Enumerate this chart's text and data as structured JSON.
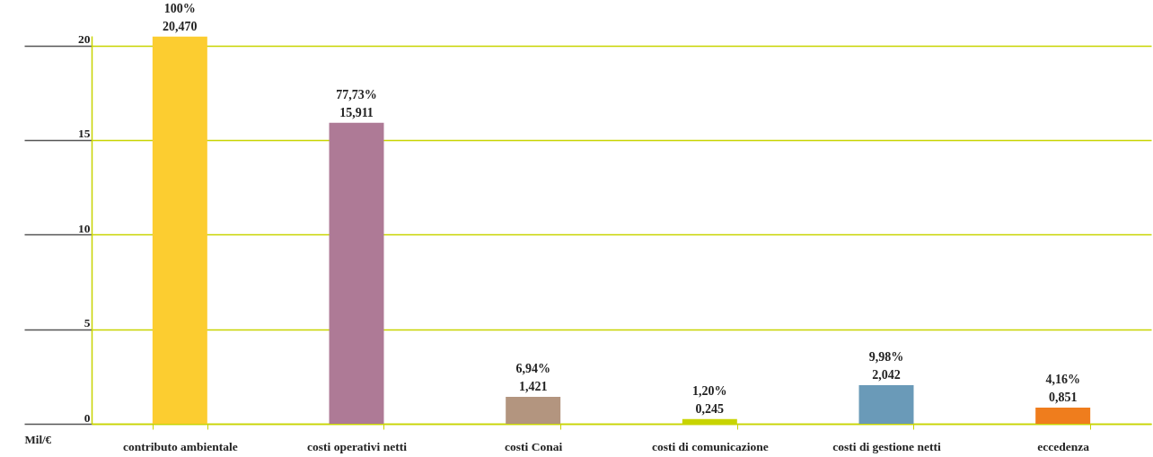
{
  "chart_data": {
    "type": "bar",
    "ylabel": "Mil/€",
    "categories": [
      "contributo ambientale",
      "costi operativi netti",
      "costi Conai",
      "costi di comunicazione",
      "costi di gestione netti",
      "eccedenza"
    ],
    "values": [
      20.47,
      15.911,
      1.421,
      0.245,
      2.042,
      0.851
    ],
    "colors": [
      "#fccd30",
      "#ae7a96",
      "#b3957f",
      "#c8d400",
      "#6a9ab8",
      "#ef7d1d"
    ],
    "value_labels": [
      "100%\n20,470",
      "77,73%\n15,911",
      "6,94%\n1,421",
      "1,20%\n0,245",
      "9,98%\n2,042",
      "4,16%\n0,851"
    ],
    "ylim": [
      0,
      20.5
    ],
    "yticks": [
      0,
      5,
      10,
      15,
      20
    ],
    "grid": "y"
  }
}
